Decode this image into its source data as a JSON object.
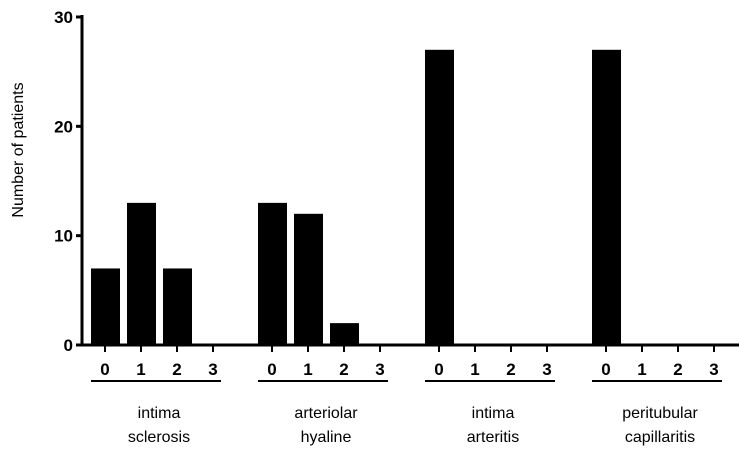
{
  "chart_data": {
    "type": "bar",
    "title": "",
    "xlabel": "",
    "ylabel": "Number of patients",
    "ylim": [
      0,
      30
    ],
    "yticks": [
      0,
      10,
      20,
      30
    ],
    "grid": false,
    "groups": [
      {
        "label_lines": [
          "intima",
          "sclerosis"
        ],
        "categories": [
          "0",
          "1",
          "2",
          "3"
        ],
        "values": [
          7,
          13,
          7,
          0
        ]
      },
      {
        "label_lines": [
          "arteriolar",
          "hyaline"
        ],
        "categories": [
          "0",
          "1",
          "2",
          "3"
        ],
        "values": [
          13,
          12,
          2,
          0
        ]
      },
      {
        "label_lines": [
          "intima",
          "arteritis"
        ],
        "categories": [
          "0",
          "1",
          "2",
          "3"
        ],
        "values": [
          27,
          0,
          0,
          0
        ]
      },
      {
        "label_lines": [
          "peritubular",
          "capillaritis"
        ],
        "categories": [
          "0",
          "1",
          "2",
          "3"
        ],
        "values": [
          27,
          0,
          0,
          0
        ]
      }
    ],
    "colors": {
      "bar": "#000000",
      "axis": "#000000"
    }
  }
}
